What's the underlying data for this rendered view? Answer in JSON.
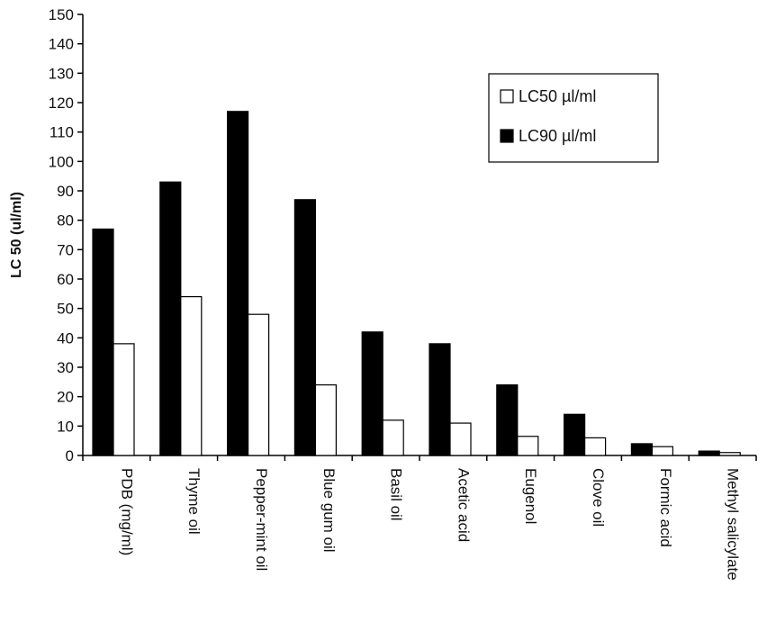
{
  "chart_data": {
    "type": "bar",
    "ylabel": "LC 50 (ul/ml)",
    "ylim": [
      0,
      150
    ],
    "y_ticks": [
      "0",
      "10",
      "20",
      "30",
      "40",
      "50",
      "60",
      "70",
      "80",
      "90",
      "100",
      "110",
      "120",
      "130",
      "140",
      "150"
    ],
    "categories": [
      "PDB (mg/ml)",
      "Thyme oil",
      "Pepper-mint oil",
      "Blue gum oil",
      "Basil oil",
      "Acetic acid",
      "Eugenol",
      "Clove oil",
      "Formic acid",
      "Methyl salicylate"
    ],
    "series": [
      {
        "name": "LC90 µl/ml",
        "color": "#000000",
        "values": [
          77,
          93,
          117,
          87,
          42,
          38,
          24,
          14,
          4,
          1.5
        ]
      },
      {
        "name": "LC50 µl/ml",
        "color": "#ffffff",
        "values": [
          38,
          54,
          48,
          24,
          12,
          11,
          6.5,
          6,
          3,
          1
        ]
      }
    ],
    "legend": {
      "position": "top-right",
      "order": [
        "LC50 µl/ml",
        "LC90 µl/ml"
      ]
    },
    "grid": false
  }
}
